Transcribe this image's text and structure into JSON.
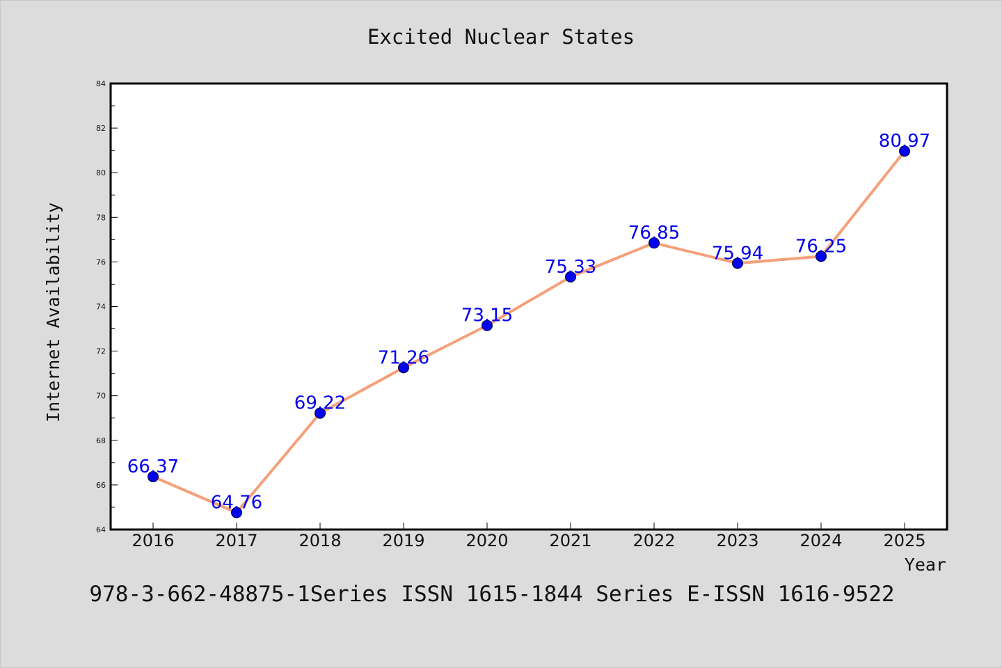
{
  "chart_data": {
    "type": "line",
    "title": "Excited Nuclear States",
    "xlabel": "Year",
    "ylabel": "Internet Availability",
    "x": [
      "2016",
      "2017",
      "2018",
      "2019",
      "2020",
      "2021",
      "2022",
      "2023",
      "2024",
      "2025"
    ],
    "series": [
      {
        "values": [
          66.37,
          64.76,
          69.22,
          71.26,
          73.15,
          75.33,
          76.85,
          75.94,
          76.25,
          80.97
        ],
        "data_labels": [
          "66.37",
          "64.76",
          "69.22",
          "71.26",
          "73.15",
          "75.33",
          "76.85",
          "75.94",
          "76.25",
          "80.97"
        ]
      }
    ],
    "ylim": [
      64,
      84
    ],
    "y_ticks": [
      "64",
      "66",
      "68",
      "70",
      "72",
      "74",
      "76",
      "78",
      "80",
      "82",
      "84"
    ],
    "grid": false,
    "line_color": "#f4a07a",
    "marker_color": "#0000ee",
    "label_color": "#0000ee",
    "footer": "978-3-662-48875-1Series ISSN 1615-1844 Series E-ISSN 1616-9522"
  }
}
